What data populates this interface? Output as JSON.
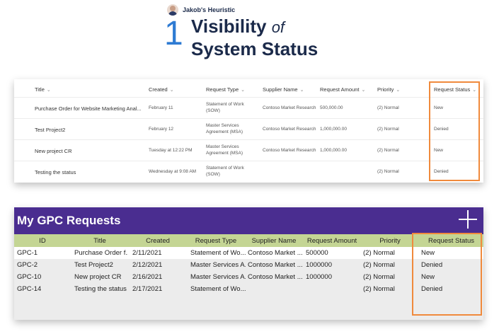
{
  "header": {
    "brand": "Jakob's Heuristic",
    "number": "1",
    "title_line1": "Visibility",
    "title_of": "of",
    "title_line2": "System Status"
  },
  "sharepoint_list": {
    "columns": [
      "Title",
      "Created",
      "Request Type",
      "Supplier Name",
      "Request Amount",
      "Priority",
      "Request Status"
    ],
    "rows": [
      {
        "title": "Purchase Order for Website Marketing Anal...",
        "created": "February 11",
        "request_type": "Statement of Work (SOW)",
        "supplier": "Contoso Market Research",
        "amount": "500,000.00",
        "priority": "(2) Normal",
        "status": "New"
      },
      {
        "title": "Test Project2",
        "created": "February 12",
        "request_type": "Master Services Agreement (MSA)",
        "supplier": "Contoso Market Research",
        "amount": "1,000,000.00",
        "priority": "(2) Normal",
        "status": "Denied"
      },
      {
        "title": "New project CR",
        "created": "Tuesday at 12:22 PM",
        "request_type": "Master Services Agreement (MSA)",
        "supplier": "Contoso Market Research",
        "amount": "1,000,000.00",
        "priority": "(2) Normal",
        "status": "New"
      },
      {
        "title": "Testing the status",
        "created": "Wednesday at 9:08 AM",
        "request_type": "Statement of Work (SOW)",
        "supplier": "",
        "amount": "",
        "priority": "(2) Normal",
        "status": "Denied"
      }
    ]
  },
  "gpc_app": {
    "title": "My GPC Requests",
    "add_icon": "plus-icon",
    "columns": [
      "ID",
      "Title",
      "Created",
      "Request Type",
      "Supplier Name",
      "Request Amount",
      "Priority",
      "Request Status"
    ],
    "rows": [
      {
        "id": "GPC-1",
        "title": "Purchase Order f...",
        "created": "2/11/2021",
        "request_type": "Statement of Wo...",
        "supplier": "Contoso Market ...",
        "amount": "500000",
        "priority": "(2) Normal",
        "status": "New"
      },
      {
        "id": "GPC-2",
        "title": "Test Project2",
        "created": "2/12/2021",
        "request_type": "Master Services A...",
        "supplier": "Contoso Market ...",
        "amount": "1000000",
        "priority": "(2) Normal",
        "status": "Denied"
      },
      {
        "id": "GPC-10",
        "title": "New project CR",
        "created": "2/16/2021",
        "request_type": "Master Services A...",
        "supplier": "Contoso Market ...",
        "amount": "1000000",
        "priority": "(2) Normal",
        "status": "New"
      },
      {
        "id": "GPC-14",
        "title": "Testing the status",
        "created": "2/17/2021",
        "request_type": "Statement of Wo...",
        "supplier": "",
        "amount": "",
        "priority": "(2) Normal",
        "status": "Denied"
      }
    ]
  },
  "colors": {
    "accent_blue": "#2e7bd3",
    "navy": "#1b2a4a",
    "purple_header": "#4a2d90",
    "green_header": "#c4d594",
    "highlight_orange": "#f08a3c",
    "link_teal": "#0b6a8a"
  }
}
